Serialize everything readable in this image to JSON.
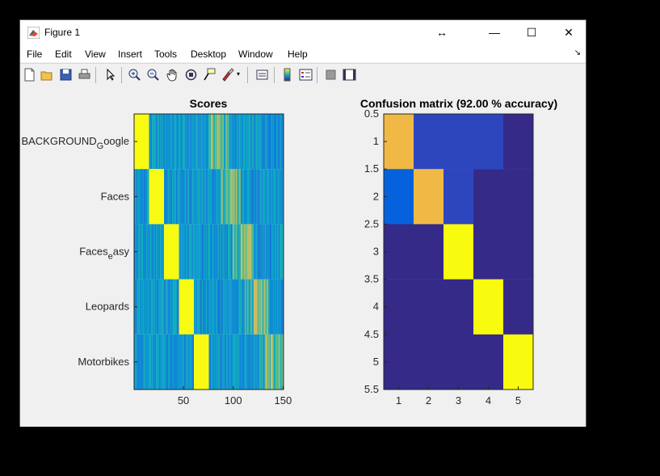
{
  "window": {
    "title": "Figure 1",
    "controls": {
      "move": "↔",
      "minimize": "—",
      "maximize": "☐",
      "close": "✕"
    }
  },
  "menu": [
    "File",
    "Edit",
    "View",
    "Insert",
    "Tools",
    "Desktop",
    "Window",
    "Help"
  ],
  "toolbar_icons": [
    "new-figure-icon",
    "open-file-icon",
    "save-icon",
    "print-icon",
    "pointer-icon",
    "zoom-in-icon",
    "zoom-out-icon",
    "pan-icon",
    "rotate-3d-icon",
    "data-cursor-icon",
    "brush-icon",
    "link-plot-icon",
    "insert-colorbar-icon",
    "insert-legend-icon",
    "hide-plot-tools-icon",
    "show-plot-tools-icon"
  ],
  "colormap": "parula",
  "chart_data": [
    {
      "type": "heatmap",
      "title": "Scores",
      "x_ticks": [
        "50",
        "100",
        "150"
      ],
      "x_tick_values": [
        50,
        100,
        150
      ],
      "xlim": [
        0.5,
        150.5
      ],
      "y_ticks": [
        {
          "base": "BACKGROUND",
          "sub": "G",
          "rest": "oogle"
        },
        {
          "base": "Faces",
          "sub": "",
          "rest": ""
        },
        {
          "base": "Faces",
          "sub": "e",
          "rest": "asy"
        },
        {
          "base": "Leopards",
          "sub": "",
          "rest": ""
        },
        {
          "base": "Motorbikes",
          "sub": "",
          "rest": ""
        }
      ],
      "blocks_per_class": 30,
      "note_values": "5 rows x 150 columns; diagonal column block (15 per class) at max score"
    },
    {
      "type": "heatmap",
      "title": "Confusion matrix (92.00 % accuracy)",
      "x_ticks": [
        "1",
        "2",
        "3",
        "4",
        "5"
      ],
      "y_ticks": [
        "0.5",
        "1",
        "1.5",
        "2",
        "2.5",
        "3",
        "3.5",
        "4",
        "4.5",
        "5",
        "5.5"
      ],
      "matrix": [
        [
          0.8,
          0.2,
          0.2,
          0.2,
          0.0
        ],
        [
          0.1,
          0.8,
          0.2,
          0.0,
          0.0
        ],
        [
          0.0,
          0.0,
          1.0,
          0.0,
          0.0
        ],
        [
          0.0,
          0.0,
          0.0,
          1.0,
          0.0
        ],
        [
          0.0,
          0.0,
          0.0,
          0.0,
          1.0
        ]
      ],
      "clim": [
        0,
        1
      ],
      "accuracy_percent": 92.0
    }
  ]
}
